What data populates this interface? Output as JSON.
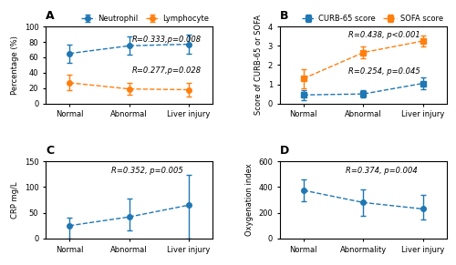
{
  "chart_data": [
    {
      "type": "line",
      "title": "A",
      "categories": [
        "Normal",
        "Abnormal",
        "Liver injury"
      ],
      "y_label": "Percentage (%)",
      "ylim": [
        0,
        100
      ],
      "yticks": [
        0,
        20,
        40,
        60,
        80,
        100
      ],
      "legend": "upper right",
      "series": [
        {
          "name": "Neutrophil",
          "values": [
            65,
            75,
            77
          ],
          "errors": [
            12,
            12,
            12
          ],
          "marker": "circle",
          "line_style": "dashed"
        },
        {
          "name": "Lymphocyte",
          "values": [
            27,
            19,
            18
          ],
          "errors": [
            10,
            8,
            9
          ],
          "marker": "circle",
          "line_style": "dashed"
        }
      ],
      "annotations": [
        {
          "text": "R=0.333,p=0.008",
          "x": 1.05,
          "y": 88
        },
        {
          "text": "R=0.277,p=0.028",
          "x": 1.05,
          "y": 48
        }
      ]
    },
    {
      "type": "line",
      "title": "B",
      "categories": [
        "Normal",
        "Abnormal",
        "Liver injury"
      ],
      "y_label": "Score of CURB-65 or SOFA",
      "ylim": [
        0,
        4
      ],
      "yticks": [
        0,
        1,
        2,
        3,
        4
      ],
      "legend": "upper right",
      "series": [
        {
          "name": "CURB-65 score",
          "values": [
            0.45,
            0.5,
            1.05
          ],
          "errors": [
            0.25,
            0.2,
            0.3
          ],
          "marker": "square",
          "line_style": "dashed"
        },
        {
          "name": "SOFA score",
          "values": [
            1.3,
            2.65,
            3.25
          ],
          "errors": [
            0.5,
            0.3,
            0.3
          ],
          "marker": "square",
          "line_style": "dashed"
        }
      ],
      "annotations": [
        {
          "text": "R=0.438, p<0.001",
          "x": 0.75,
          "y": 3.75
        },
        {
          "text": "R=0.254, p=0.045",
          "x": 0.75,
          "y": 1.9
        }
      ]
    },
    {
      "type": "line",
      "title": "C",
      "categories": [
        "Normal",
        "Abnormal",
        "Liver injury"
      ],
      "y_label": "CRP mg/L",
      "ylim": [
        0,
        150
      ],
      "yticks": [
        0,
        50,
        100,
        150
      ],
      "series": [
        {
          "values": [
            25,
            42,
            65
          ],
          "errors_low": [
            25,
            27,
            65
          ],
          "errors_high": [
            15,
            35,
            58
          ],
          "marker": "circle",
          "line_style": "dashed"
        }
      ],
      "annotations": [
        {
          "text": "R=0.352, p=0.005",
          "x": 0.7,
          "y": 140
        }
      ]
    },
    {
      "type": "line",
      "title": "D",
      "categories": [
        "Normal",
        "Abnormality",
        "Liver injury"
      ],
      "y_label": "Oxygenation index",
      "ylim": [
        0,
        600
      ],
      "yticks": [
        0,
        200,
        400,
        600
      ],
      "series": [
        {
          "values": [
            375,
            280,
            230
          ],
          "errors_low": [
            85,
            105,
            85
          ],
          "errors_high": [
            85,
            105,
            110
          ],
          "marker": "circle",
          "line_style": "dashed"
        }
      ],
      "annotations": [
        {
          "text": "R=0.374, p=0.004",
          "x": 0.7,
          "y": 560
        }
      ]
    }
  ]
}
